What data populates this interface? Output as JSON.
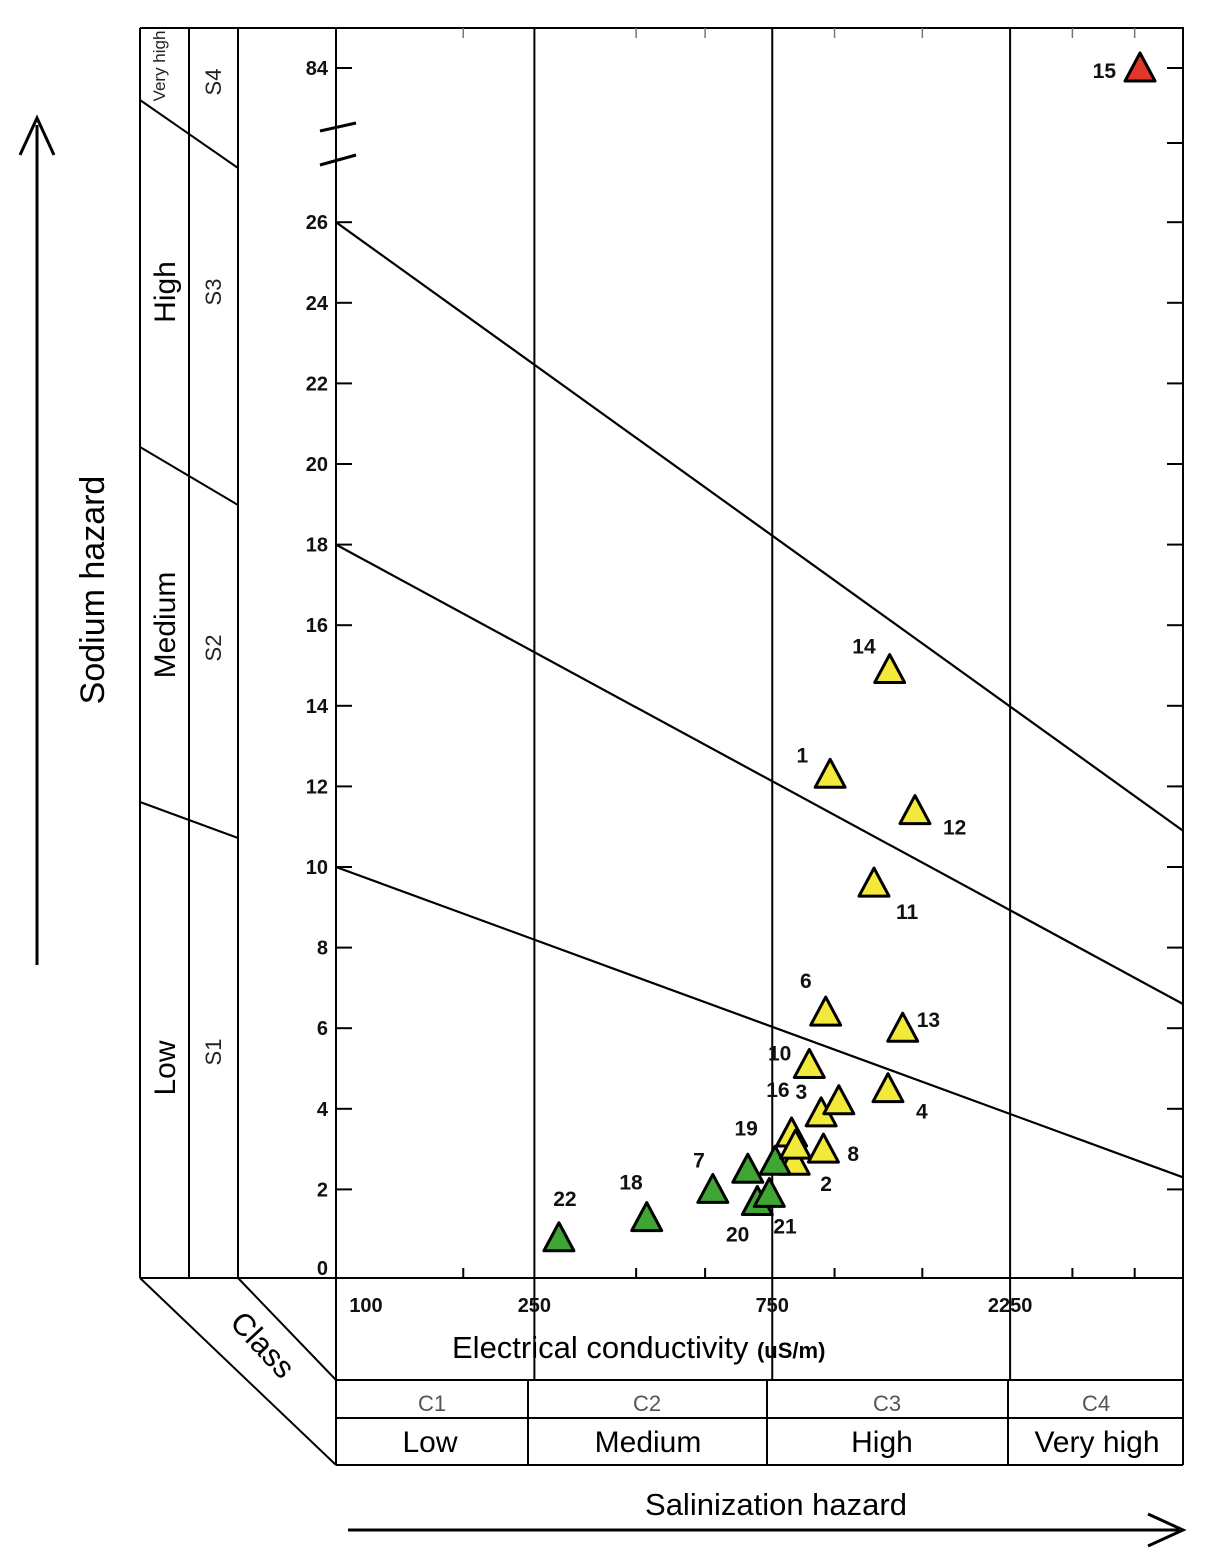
{
  "chart_data": {
    "type": "scatter",
    "title": "",
    "xlabel": "Electrical conductivity",
    "xlabel_unit": "(uS/m)",
    "ylabel": "Sodium hazard",
    "bottom_label": "Salinization hazard",
    "class_label": "Class",
    "x_scale": "log",
    "x_ticks": [
      "100",
      "250",
      "750",
      "2250"
    ],
    "xlim": [
      100,
      5000
    ],
    "y_ticks": [
      "0",
      "2",
      "4",
      "6",
      "8",
      "10",
      "12",
      "14",
      "16",
      "18",
      "20",
      "22",
      "24",
      "26",
      "84"
    ],
    "ylim": [
      0,
      30
    ],
    "y_axis_break": true,
    "grid": false,
    "sodium_classes": [
      {
        "code": "S1",
        "name": "Low"
      },
      {
        "code": "S2",
        "name": "Medium"
      },
      {
        "code": "S3",
        "name": "High"
      },
      {
        "code": "S4",
        "name": "Very high"
      }
    ],
    "salinity_classes": [
      {
        "code": "C1",
        "name": "Low"
      },
      {
        "code": "C2",
        "name": "Medium"
      },
      {
        "code": "C3",
        "name": "High"
      },
      {
        "code": "C4",
        "name": "Very high"
      }
    ],
    "boundary_lines": [
      {
        "from": [
          100,
          10
        ],
        "to": [
          5000,
          2.3
        ]
      },
      {
        "from": [
          100,
          18
        ],
        "to": [
          5000,
          6.6
        ]
      },
      {
        "from": [
          100,
          26
        ],
        "to": [
          5000,
          10.9
        ]
      }
    ],
    "point_colors": {
      "green": "#3fa535",
      "yellow": "#f2e93a",
      "red": "#e2362a"
    },
    "points": [
      {
        "label": "1",
        "x": 980,
        "y": 12.3,
        "color": "yellow"
      },
      {
        "label": "2",
        "x": 830,
        "y": 2.7,
        "color": "yellow"
      },
      {
        "label": "3",
        "x": 940,
        "y": 3.9,
        "color": "yellow"
      },
      {
        "label": "4",
        "x": 1280,
        "y": 4.5,
        "color": "yellow"
      },
      {
        "label": "6",
        "x": 960,
        "y": 6.4,
        "color": "yellow"
      },
      {
        "label": "7",
        "x": 570,
        "y": 2.0,
        "color": "green"
      },
      {
        "label": "8",
        "x": 950,
        "y": 3.0,
        "color": "yellow"
      },
      {
        "label": "10",
        "x": 890,
        "y": 5.1,
        "color": "yellow"
      },
      {
        "label": "11",
        "x": 1200,
        "y": 9.6,
        "color": "yellow"
      },
      {
        "label": "12",
        "x": 1450,
        "y": 11.4,
        "color": "yellow"
      },
      {
        "label": "13",
        "x": 1370,
        "y": 6.0,
        "color": "yellow"
      },
      {
        "label": "14",
        "x": 1290,
        "y": 14.9,
        "color": "yellow"
      },
      {
        "label": "15",
        "x": 4100,
        "y": 84,
        "color": "red"
      },
      {
        "label": "16",
        "x": 820,
        "y": 3.4,
        "color": "yellow"
      },
      {
        "label": "18",
        "x": 420,
        "y": 1.3,
        "color": "green"
      },
      {
        "label": "19",
        "x": 670,
        "y": 2.5,
        "color": "green"
      },
      {
        "label": "20",
        "x": 700,
        "y": 1.7,
        "color": "green"
      },
      {
        "label": "21",
        "x": 740,
        "y": 1.9,
        "color": "green"
      },
      {
        "label": "22",
        "x": 280,
        "y": 0.8,
        "color": "green"
      },
      {
        "label": "",
        "x": 760,
        "y": 2.7,
        "color": "green"
      },
      {
        "label": "",
        "x": 835,
        "y": 3.1,
        "color": "yellow"
      },
      {
        "label": "",
        "x": 1020,
        "y": 4.2,
        "color": "yellow"
      }
    ]
  }
}
